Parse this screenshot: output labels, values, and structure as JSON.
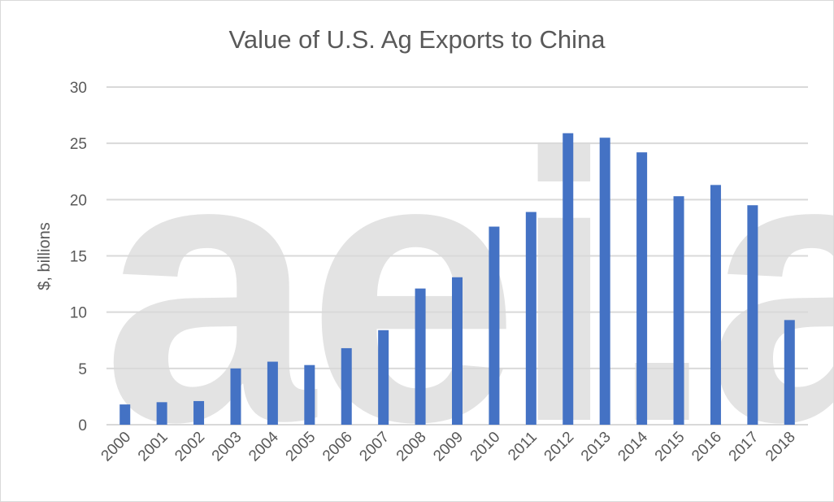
{
  "chart_data": {
    "type": "bar",
    "title": "Value of U.S. Ag Exports to China",
    "xlabel": "",
    "ylabel": "$, billions",
    "ylim": [
      0,
      30
    ],
    "yticks": [
      "0",
      "5",
      "10",
      "15",
      "20",
      "25",
      "30"
    ],
    "grid": true,
    "categories": [
      "2000",
      "2001",
      "2002",
      "2003",
      "2004",
      "2005",
      "2006",
      "2007",
      "2008",
      "2009",
      "2010",
      "2011",
      "2012",
      "2013",
      "2014",
      "2015",
      "2016",
      "2017",
      "2018"
    ],
    "values": [
      1.8,
      2.0,
      2.1,
      5.0,
      5.6,
      5.3,
      6.8,
      8.4,
      12.1,
      13.1,
      17.6,
      18.9,
      25.9,
      25.5,
      24.2,
      20.3,
      21.3,
      19.5,
      9.3
    ],
    "bar_color": "#4472c4",
    "gridline_color": "#d9d9d9",
    "watermark": "aei.ag"
  }
}
